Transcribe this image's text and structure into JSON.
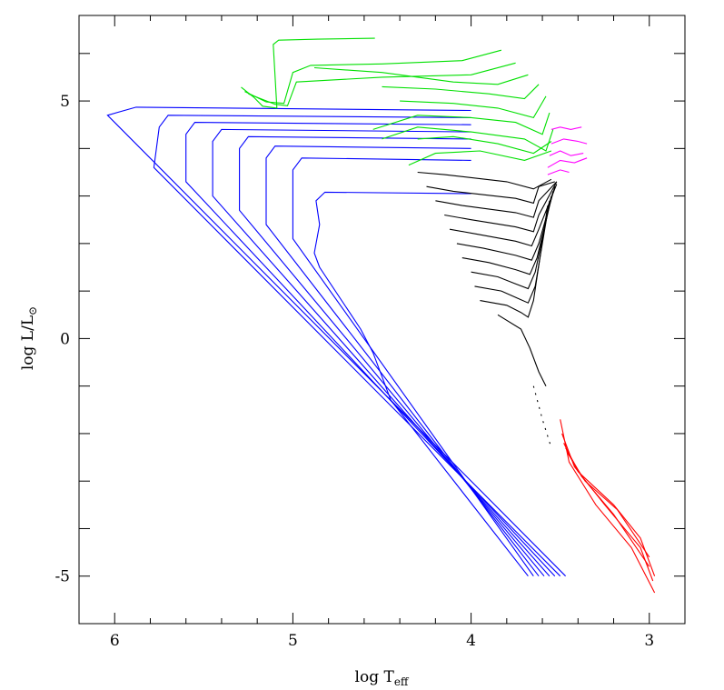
{
  "chart_data": {
    "type": "line",
    "xlabel": "log T",
    "xlabel_sub": "eff",
    "ylabel": "log L/L",
    "ylabel_sub": "⊙",
    "xlim": [
      6.2,
      2.8
    ],
    "ylim": [
      -6,
      6.8
    ],
    "xticks": [
      6,
      5,
      4,
      3
    ],
    "yticks": [
      -5,
      0,
      5
    ],
    "xminor_ticks": [
      5.8,
      5.6,
      5.4,
      5.2,
      4.8,
      4.6,
      4.4,
      4.2,
      3.8,
      3.6,
      3.4,
      3.2
    ],
    "yminor_ticks": [
      6,
      4,
      3,
      2,
      1,
      -1,
      -2,
      -3,
      -4
    ],
    "series": [
      {
        "color": "#0000ff",
        "x": [
          4.0,
          5.88,
          6.04,
          3.47
        ],
        "y": [
          4.8,
          4.87,
          4.7,
          -5
        ]
      },
      {
        "color": "#0000ff",
        "x": [
          4.0,
          5.7,
          5.75,
          5.78,
          3.5
        ],
        "y": [
          4.65,
          4.7,
          4.45,
          3.6,
          -5
        ]
      },
      {
        "color": "#0000ff",
        "x": [
          4.0,
          5.55,
          5.6,
          5.6,
          3.53
        ],
        "y": [
          4.5,
          4.55,
          4.3,
          3.3,
          -5
        ]
      },
      {
        "color": "#0000ff",
        "x": [
          4.0,
          5.4,
          5.45,
          5.45,
          3.56
        ],
        "y": [
          4.35,
          4.4,
          4.15,
          3.0,
          -5
        ]
      },
      {
        "color": "#0000ff",
        "x": [
          4.0,
          5.25,
          5.3,
          5.3,
          3.59
        ],
        "y": [
          4.2,
          4.25,
          4.0,
          2.7,
          -5
        ]
      },
      {
        "color": "#0000ff",
        "x": [
          4.0,
          5.1,
          5.15,
          5.15,
          3.62
        ],
        "y": [
          4.0,
          4.05,
          3.8,
          2.4,
          -5
        ]
      },
      {
        "color": "#0000ff",
        "x": [
          4.0,
          4.95,
          5.0,
          5.0,
          3.65
        ],
        "y": [
          3.75,
          3.8,
          3.55,
          2.1,
          -5
        ]
      },
      {
        "color": "#0000ff",
        "x": [
          4.0,
          4.82,
          4.87,
          4.85,
          4.88,
          4.85,
          4.62,
          4.55,
          4.45,
          3.68
        ],
        "y": [
          3.05,
          3.08,
          2.9,
          2.4,
          1.8,
          1.5,
          0.2,
          -0.3,
          -1.3,
          -5
        ]
      },
      {
        "color": "#00e000",
        "x": [
          5.29,
          5.22,
          5.17,
          5.09,
          5.11,
          5.08,
          4.86,
          4.54
        ],
        "y": [
          5.29,
          5.08,
          4.89,
          4.85,
          6.19,
          6.28,
          6.3,
          6.32
        ]
      },
      {
        "color": "#00e000",
        "x": [
          5.27,
          5.15,
          5.05,
          5.0,
          4.9,
          4.5,
          4.05,
          3.83
        ],
        "y": [
          5.2,
          4.98,
          4.95,
          5.6,
          5.75,
          5.78,
          5.85,
          6.07
        ]
      },
      {
        "color": "#00e000",
        "x": [
          5.25,
          5.1,
          5.03,
          4.98,
          4.5,
          4.0,
          3.75
        ],
        "y": [
          5.15,
          4.93,
          4.9,
          5.4,
          5.5,
          5.55,
          5.8
        ]
      },
      {
        "color": "#00e000",
        "x": [
          4.88,
          4.5,
          4.1,
          3.85,
          3.68
        ],
        "y": [
          5.7,
          5.6,
          5.4,
          5.35,
          5.55
        ]
      },
      {
        "color": "#00e000",
        "x": [
          4.5,
          4.2,
          3.9,
          3.7,
          3.62
        ],
        "y": [
          5.3,
          5.25,
          5.15,
          5.05,
          5.35
        ]
      },
      {
        "color": "#00e000",
        "x": [
          4.4,
          4.1,
          3.85,
          3.65,
          3.58
        ],
        "y": [
          5.0,
          4.95,
          4.85,
          4.65,
          5.1
        ]
      },
      {
        "color": "#00e000",
        "x": [
          4.55,
          4.3,
          4.0,
          3.75,
          3.6,
          3.56
        ],
        "y": [
          4.4,
          4.7,
          4.65,
          4.55,
          4.3,
          4.75
        ]
      },
      {
        "color": "#00e000",
        "x": [
          4.5,
          4.3,
          4.0,
          3.7,
          3.58,
          3.54
        ],
        "y": [
          4.2,
          4.45,
          4.35,
          4.2,
          3.95,
          4.4
        ]
      },
      {
        "color": "#00e000",
        "x": [
          4.3,
          4.1,
          3.85,
          3.65,
          3.55
        ],
        "y": [
          4.2,
          4.25,
          4.1,
          3.9,
          4.15
        ]
      },
      {
        "color": "#00e000",
        "x": [
          4.35,
          4.2,
          3.95,
          3.7,
          3.55
        ],
        "y": [
          3.65,
          3.9,
          3.95,
          3.75,
          3.95
        ]
      },
      {
        "color": "#ff00ff",
        "x": [
          3.55,
          3.5,
          3.44,
          3.38
        ],
        "y": [
          4.4,
          4.45,
          4.4,
          4.45
        ]
      },
      {
        "color": "#ff00ff",
        "x": [
          3.55,
          3.48,
          3.4,
          3.35
        ],
        "y": [
          4.1,
          4.2,
          4.15,
          4.1
        ]
      },
      {
        "color": "#ff00ff",
        "x": [
          3.56,
          3.5,
          3.44,
          3.37
        ],
        "y": [
          3.85,
          3.95,
          3.85,
          3.9
        ]
      },
      {
        "color": "#ff00ff",
        "x": [
          3.57,
          3.5,
          3.42,
          3.35
        ],
        "y": [
          3.6,
          3.75,
          3.7,
          3.8
        ]
      },
      {
        "color": "#ff00ff",
        "x": [
          3.57,
          3.5,
          3.45
        ],
        "y": [
          3.45,
          3.55,
          3.5
        ]
      },
      {
        "color": "#000000",
        "x": [
          4.3,
          4.15,
          3.8,
          3.65,
          3.55
        ],
        "y": [
          3.5,
          3.45,
          3.3,
          3.15,
          3.35
        ]
      },
      {
        "color": "#000000",
        "x": [
          4.25,
          4.1,
          3.75,
          3.65,
          3.62,
          3.53
        ],
        "y": [
          3.2,
          3.1,
          2.95,
          2.85,
          3.2,
          3.3
        ]
      },
      {
        "color": "#000000",
        "x": [
          4.2,
          4.05,
          3.75,
          3.65,
          3.62,
          3.52
        ],
        "y": [
          2.9,
          2.8,
          2.65,
          2.55,
          2.9,
          3.3
        ]
      },
      {
        "color": "#000000",
        "x": [
          4.15,
          4.0,
          3.75,
          3.65,
          3.62,
          3.52
        ],
        "y": [
          2.6,
          2.5,
          2.35,
          2.25,
          2.6,
          3.3
        ]
      },
      {
        "color": "#000000",
        "x": [
          4.12,
          3.97,
          3.75,
          3.66,
          3.62,
          3.52
        ],
        "y": [
          2.3,
          2.2,
          2.05,
          1.95,
          2.3,
          3.25
        ]
      },
      {
        "color": "#000000",
        "x": [
          4.08,
          3.93,
          3.75,
          3.66,
          3.62,
          3.53
        ],
        "y": [
          2.0,
          1.9,
          1.75,
          1.65,
          2.0,
          3.2
        ]
      },
      {
        "color": "#000000",
        "x": [
          4.05,
          3.9,
          3.75,
          3.67,
          3.63,
          3.54
        ],
        "y": [
          1.7,
          1.6,
          1.45,
          1.35,
          1.7,
          3.1
        ]
      },
      {
        "color": "#000000",
        "x": [
          4.0,
          3.85,
          3.75,
          3.68,
          3.64,
          3.55
        ],
        "y": [
          1.4,
          1.3,
          1.15,
          1.05,
          1.4,
          3.0
        ]
      },
      {
        "color": "#000000",
        "x": [
          3.98,
          3.83,
          3.74,
          3.68,
          3.64,
          3.56
        ],
        "y": [
          1.1,
          1.0,
          0.85,
          0.75,
          1.1,
          2.9
        ]
      },
      {
        "color": "#000000",
        "x": [
          3.95,
          3.8,
          3.72,
          3.68,
          3.65,
          3.57
        ],
        "y": [
          0.8,
          0.7,
          0.55,
          0.45,
          0.8,
          2.8
        ]
      },
      {
        "color": "#000000",
        "x": [
          3.85,
          3.72,
          3.67,
          3.62,
          3.58
        ],
        "y": [
          0.5,
          0.2,
          -0.2,
          -0.7,
          -1.0
        ]
      },
      {
        "color": "#000000",
        "dashed": true,
        "x": [
          3.65,
          3.6,
          3.55
        ],
        "y": [
          -1.0,
          -1.7,
          -2.3
        ]
      },
      {
        "color": "#ff0000",
        "x": [
          3.5,
          3.45,
          3.3,
          3.1,
          2.97
        ],
        "y": [
          -1.7,
          -2.6,
          -3.5,
          -4.4,
          -5.35
        ]
      },
      {
        "color": "#ff0000",
        "x": [
          3.49,
          3.42,
          3.25,
          3.05,
          2.98
        ],
        "y": [
          -2.0,
          -2.7,
          -3.5,
          -4.4,
          -5.1
        ]
      },
      {
        "color": "#ff0000",
        "x": [
          3.48,
          3.4,
          3.2,
          3.05,
          2.97
        ],
        "y": [
          -2.2,
          -2.8,
          -3.5,
          -4.2,
          -5.0
        ]
      },
      {
        "color": "#ff0000",
        "x": [
          3.47,
          3.38,
          3.2,
          3.0
        ],
        "y": [
          -2.3,
          -2.9,
          -3.7,
          -4.8
        ]
      },
      {
        "color": "#ff0000",
        "x": [
          3.46,
          3.36,
          3.18,
          3.0
        ],
        "y": [
          -2.4,
          -3.0,
          -3.6,
          -4.6
        ]
      }
    ]
  }
}
